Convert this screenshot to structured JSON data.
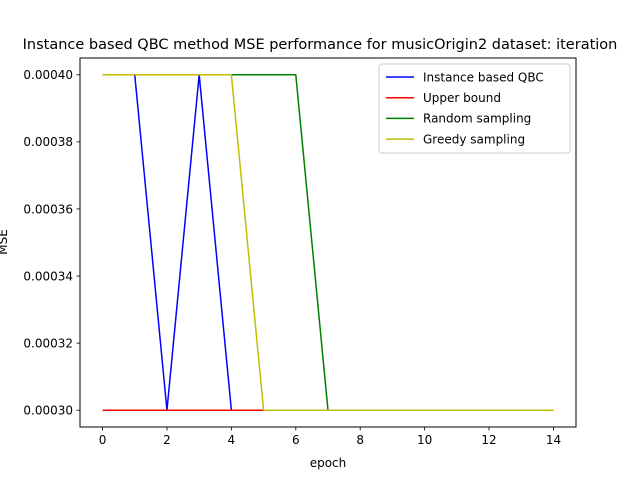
{
  "chart_data": {
    "type": "line",
    "title": "Instance based QBC method MSE performance for musicOrigin2 dataset: iteration",
    "xlabel": "epoch",
    "ylabel": "MSE",
    "xlim": [
      -0.7,
      14.7
    ],
    "ylim": [
      0.000295,
      0.000405
    ],
    "x_ticks": [
      0,
      2,
      4,
      6,
      8,
      10,
      12,
      14
    ],
    "x_tick_labels": [
      "0",
      "2",
      "4",
      "6",
      "8",
      "10",
      "12",
      "14"
    ],
    "y_ticks": [
      0.0003,
      0.00032,
      0.00034,
      0.00036,
      0.00038,
      0.0004
    ],
    "y_tick_labels": [
      "0.00030",
      "0.00032",
      "0.00034",
      "0.00036",
      "0.00038",
      "0.00040"
    ],
    "grid": false,
    "legend_position": "top-right",
    "x": [
      0,
      1,
      2,
      3,
      4,
      5,
      6,
      7,
      8,
      9,
      10,
      11,
      12,
      13,
      14
    ],
    "series": [
      {
        "name": "Instance based QBC",
        "color": "#0000ff",
        "values": [
          0.0004,
          0.0004,
          0.0003,
          0.0004,
          0.0003,
          0.0003,
          0.0003,
          0.0003,
          0.0003,
          0.0003,
          0.0003,
          0.0003,
          0.0003,
          0.0003,
          0.0003
        ]
      },
      {
        "name": "Upper bound",
        "color": "#ff0000",
        "values": [
          0.0003,
          0.0003,
          0.0003,
          0.0003,
          0.0003,
          0.0003,
          0.0003,
          0.0003,
          0.0003,
          0.0003,
          0.0003,
          0.0003,
          0.0003,
          0.0003,
          0.0003
        ]
      },
      {
        "name": "Random sampling",
        "color": "#008000",
        "values": [
          0.0004,
          0.0004,
          0.0004,
          0.0004,
          0.0004,
          0.0004,
          0.0004,
          0.0003,
          0.0003,
          0.0003,
          0.0003,
          0.0003,
          0.0003,
          0.0003,
          0.0003
        ]
      },
      {
        "name": "Greedy sampling",
        "color": "#bfbf00",
        "values": [
          0.0004,
          0.0004,
          0.0004,
          0.0004,
          0.0004,
          0.0003,
          0.0003,
          0.0003,
          0.0003,
          0.0003,
          0.0003,
          0.0003,
          0.0003,
          0.0003,
          0.0003
        ]
      }
    ]
  }
}
